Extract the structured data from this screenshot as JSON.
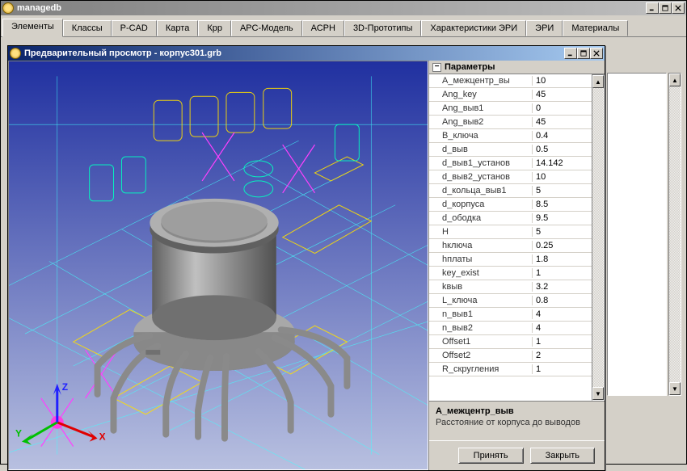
{
  "main": {
    "title": "managedb",
    "tabs": [
      "Элементы",
      "Классы",
      "P-CAD",
      "Карта",
      "Крр",
      "АРС-Модель",
      "АСРН",
      "3D-Прототипы",
      "Характеристики ЭРИ",
      "ЭРИ",
      "Материалы"
    ],
    "active_tab": 0
  },
  "preview": {
    "title": "Предварительный просмотр - корпус301.grb",
    "params_header": "Параметры",
    "params": [
      {
        "name": "А_межцентр_вы",
        "value": "10"
      },
      {
        "name": "Ang_key",
        "value": "45"
      },
      {
        "name": "Ang_выв1",
        "value": "0"
      },
      {
        "name": "Ang_выв2",
        "value": "45"
      },
      {
        "name": "В_ключа",
        "value": "0.4"
      },
      {
        "name": "d_выв",
        "value": "0.5"
      },
      {
        "name": "d_выв1_установ",
        "value": "14.142"
      },
      {
        "name": "d_выв2_установ",
        "value": "10"
      },
      {
        "name": "d_кольца_выв1",
        "value": "5"
      },
      {
        "name": "d_корпуса",
        "value": "8.5"
      },
      {
        "name": "d_ободка",
        "value": "9.5"
      },
      {
        "name": "H",
        "value": "5"
      },
      {
        "name": "hключа",
        "value": "0.25"
      },
      {
        "name": "hплаты",
        "value": "1.8"
      },
      {
        "name": "key_exist",
        "value": "1"
      },
      {
        "name": "kвыв",
        "value": "3.2"
      },
      {
        "name": "L_ключа",
        "value": "0.8"
      },
      {
        "name": "n_выв1",
        "value": "4"
      },
      {
        "name": "n_выв2",
        "value": "4"
      },
      {
        "name": "Offset1",
        "value": "1"
      },
      {
        "name": "Offset2",
        "value": "2"
      },
      {
        "name": "R_скругления",
        "value": "1"
      }
    ],
    "selected_param": {
      "title": "А_межцентр_выв",
      "desc": "Расстояние от корпуса до выводов"
    },
    "buttons": {
      "accept": "Принять",
      "close": "Закрыть"
    }
  },
  "axes": {
    "x": "X",
    "y": "Y",
    "z": "Z"
  },
  "colors": {
    "titlebar_active_start": "#0a246a",
    "titlebar_active_end": "#a6caf0",
    "titlebar_inactive_start": "#808080",
    "titlebar_inactive_end": "#c0c0c0",
    "bg": "#d4d0c8",
    "viewport_top": "#2030a0",
    "viewport_bottom": "#b8c0e0",
    "grid_line": "#40ffff",
    "wireframe1": "#ffe000",
    "wireframe2": "#00ffc0",
    "wireframe3": "#ff40ff",
    "component_body": "#909090",
    "axis_x": "#e00000",
    "axis_y": "#00c000",
    "axis_z": "#2020ff",
    "origin": "#ff40e0"
  }
}
